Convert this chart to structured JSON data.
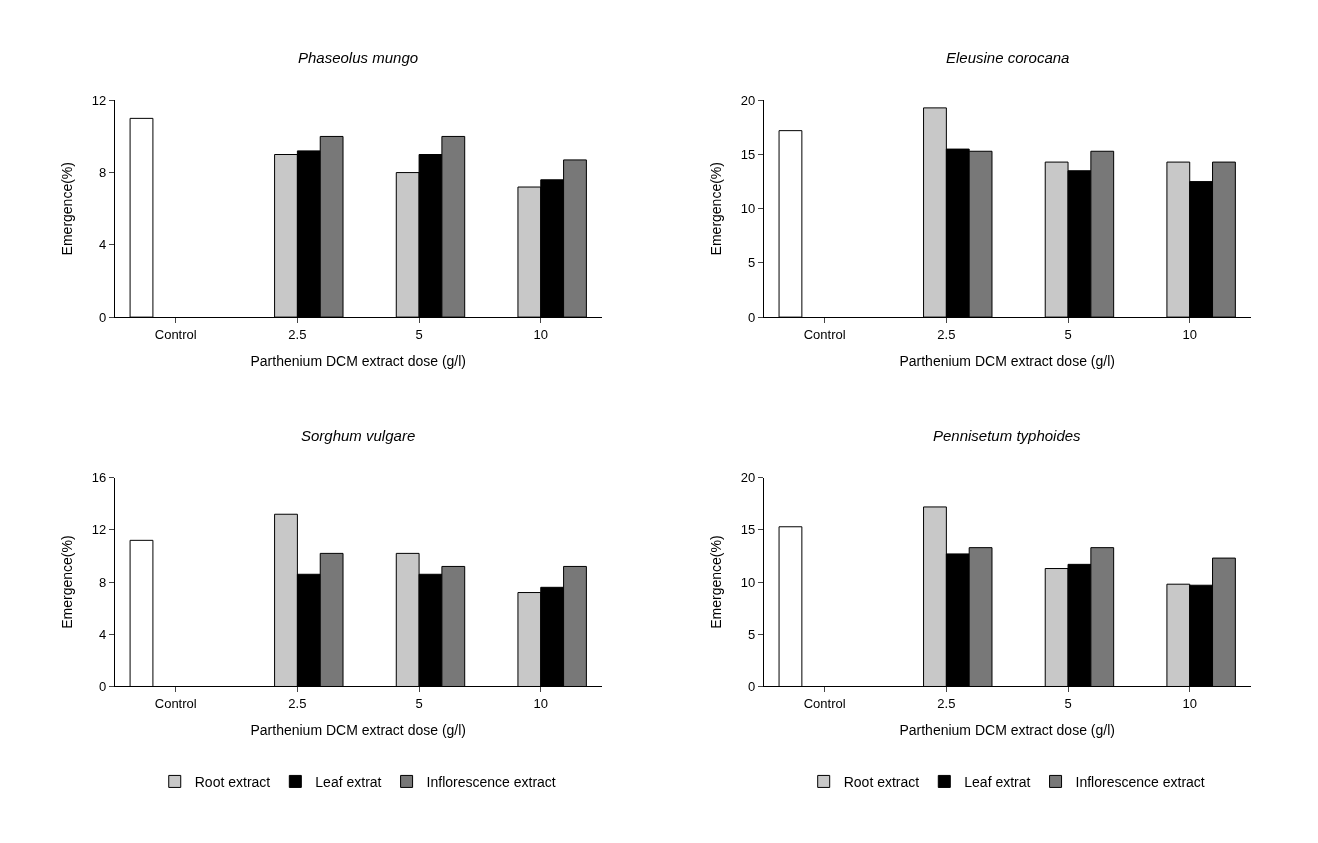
{
  "chart_data": [
    {
      "type": "bar",
      "title": "Phaseolus mungo",
      "xlabel": "Parthenium DCM extract dose (g/l)",
      "ylabel": "Emergence(%)",
      "categories": [
        "Control",
        "2.5",
        "5",
        "10"
      ],
      "ylim": [
        0,
        12
      ],
      "yticks": [
        0,
        4,
        8,
        12
      ],
      "series": [
        {
          "color": "#ffffff",
          "values": [
            11.0,
            null,
            null,
            null
          ]
        },
        {
          "color": "#c8c8c8",
          "values": [
            null,
            9.0,
            8.0,
            7.2
          ]
        },
        {
          "color": "#000000",
          "values": [
            null,
            9.2,
            9.0,
            7.6
          ]
        },
        {
          "color": "#787878",
          "values": [
            null,
            10.0,
            10.0,
            8.7
          ]
        }
      ]
    },
    {
      "type": "bar",
      "title": "Eleusine corocana",
      "xlabel": "Parthenium DCM extract dose (g/l)",
      "ylabel": "Emergence(%)",
      "categories": [
        "Control",
        "2.5",
        "5",
        "10"
      ],
      "ylim": [
        0,
        20
      ],
      "yticks": [
        0,
        5,
        10,
        15,
        20
      ],
      "series": [
        {
          "color": "#ffffff",
          "values": [
            17.2,
            null,
            null,
            null
          ]
        },
        {
          "color": "#c8c8c8",
          "values": [
            null,
            19.3,
            14.3,
            14.3
          ]
        },
        {
          "color": "#000000",
          "values": [
            null,
            15.5,
            13.5,
            12.5
          ]
        },
        {
          "color": "#787878",
          "values": [
            null,
            15.3,
            15.3,
            14.3
          ]
        }
      ]
    },
    {
      "type": "bar",
      "title": "Sorghum vulgare",
      "xlabel": "Parthenium DCM extract dose (g/l)",
      "ylabel": "Emergence(%)",
      "categories": [
        "Control",
        "2.5",
        "5",
        "10"
      ],
      "ylim": [
        0,
        16
      ],
      "yticks": [
        0,
        4,
        8,
        12,
        16
      ],
      "legend": "bottom",
      "series": [
        {
          "color": "#ffffff",
          "values": [
            11.2,
            null,
            null,
            null
          ]
        },
        {
          "name": "Root extract",
          "color": "#c8c8c8",
          "values": [
            null,
            13.2,
            10.2,
            7.2
          ]
        },
        {
          "name": "Leaf extrat",
          "color": "#000000",
          "values": [
            null,
            8.6,
            8.6,
            7.6
          ]
        },
        {
          "name": "Inflorescence extract",
          "color": "#787878",
          "values": [
            null,
            10.2,
            9.2,
            9.2
          ]
        }
      ]
    },
    {
      "type": "bar",
      "title": "Pennisetum typhoides",
      "xlabel": "Parthenium DCM extract dose (g/l)",
      "ylabel": "Emergence(%)",
      "categories": [
        "Control",
        "2.5",
        "5",
        "10"
      ],
      "ylim": [
        0,
        20
      ],
      "yticks": [
        0,
        5,
        10,
        15,
        20
      ],
      "legend": "bottom",
      "series": [
        {
          "color": "#ffffff",
          "values": [
            15.3,
            null,
            null,
            null
          ]
        },
        {
          "name": "Root extract",
          "color": "#c8c8c8",
          "values": [
            null,
            17.2,
            11.3,
            9.8
          ]
        },
        {
          "name": "Leaf extrat",
          "color": "#000000",
          "values": [
            null,
            12.7,
            11.7,
            9.7
          ]
        },
        {
          "name": "Inflorescence extract",
          "color": "#787878",
          "values": [
            null,
            13.3,
            13.3,
            12.3
          ]
        }
      ]
    }
  ]
}
